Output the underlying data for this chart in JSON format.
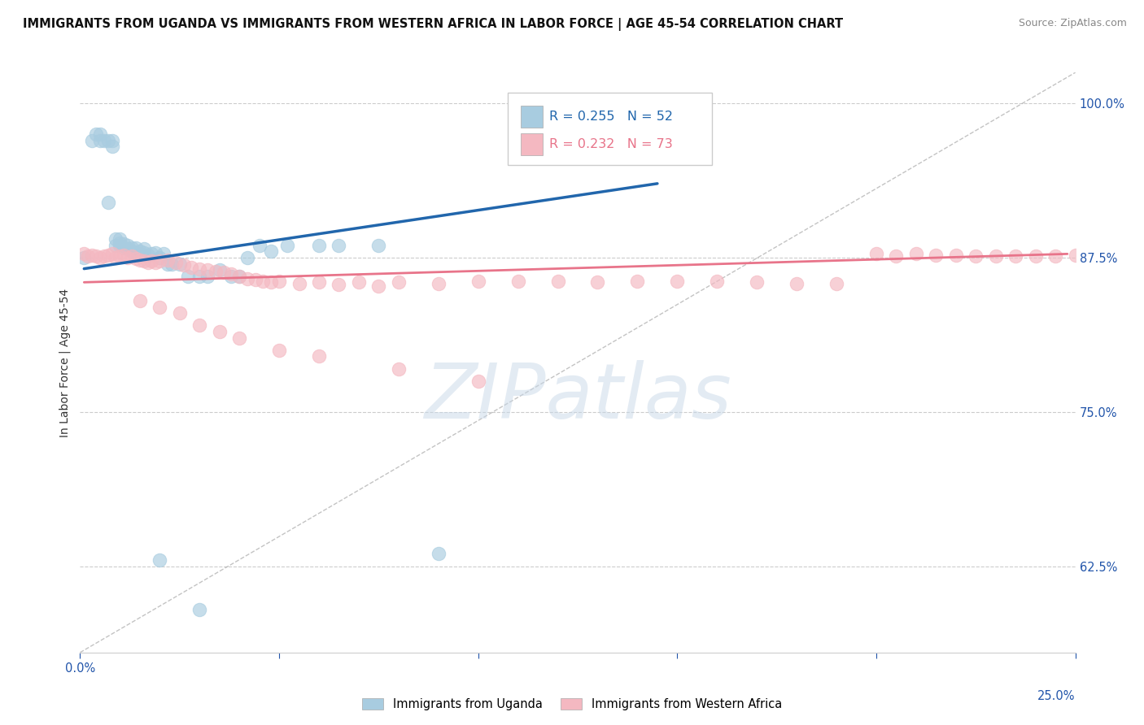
{
  "title": "IMMIGRANTS FROM UGANDA VS IMMIGRANTS FROM WESTERN AFRICA IN LABOR FORCE | AGE 45-54 CORRELATION CHART",
  "source": "Source: ZipAtlas.com",
  "ylabel": "In Labor Force | Age 45-54",
  "R_uganda": 0.255,
  "N_uganda": 52,
  "R_western": 0.232,
  "N_western": 73,
  "xlim": [
    0.0,
    0.25
  ],
  "ylim": [
    0.555,
    1.025
  ],
  "yticks": [
    0.625,
    0.75,
    0.875,
    1.0
  ],
  "ytick_labels": [
    "62.5%",
    "75.0%",
    "87.5%",
    "100.0%"
  ],
  "color_uganda": "#a8cce0",
  "color_western": "#f4b8c1",
  "trendline_color_uganda": "#2166ac",
  "trendline_color_western": "#e8748a",
  "legend_label_uganda": "Immigrants from Uganda",
  "legend_label_western": "Immigrants from Western Africa",
  "uganda_x": [
    0.001,
    0.003,
    0.004,
    0.005,
    0.005,
    0.006,
    0.007,
    0.007,
    0.008,
    0.008,
    0.009,
    0.009,
    0.01,
    0.01,
    0.01,
    0.011,
    0.011,
    0.012,
    0.012,
    0.013,
    0.013,
    0.013,
    0.014,
    0.014,
    0.015,
    0.015,
    0.016,
    0.016,
    0.017,
    0.018,
    0.019,
    0.02,
    0.021,
    0.022,
    0.023,
    0.025,
    0.027,
    0.03,
    0.032,
    0.035,
    0.038,
    0.04,
    0.042,
    0.045,
    0.048,
    0.052,
    0.06,
    0.065,
    0.075,
    0.09,
    0.02,
    0.03
  ],
  "uganda_y": [
    0.875,
    0.97,
    0.975,
    0.975,
    0.97,
    0.97,
    0.97,
    0.92,
    0.97,
    0.965,
    0.885,
    0.89,
    0.885,
    0.887,
    0.89,
    0.883,
    0.886,
    0.885,
    0.882,
    0.88,
    0.883,
    0.88,
    0.878,
    0.883,
    0.878,
    0.88,
    0.879,
    0.882,
    0.877,
    0.878,
    0.879,
    0.875,
    0.878,
    0.87,
    0.87,
    0.87,
    0.86,
    0.86,
    0.86,
    0.865,
    0.86,
    0.86,
    0.875,
    0.885,
    0.88,
    0.885,
    0.885,
    0.885,
    0.885,
    0.635,
    0.63,
    0.59
  ],
  "western_x": [
    0.001,
    0.002,
    0.003,
    0.004,
    0.005,
    0.006,
    0.007,
    0.008,
    0.009,
    0.01,
    0.011,
    0.012,
    0.013,
    0.014,
    0.015,
    0.016,
    0.017,
    0.018,
    0.019,
    0.02,
    0.022,
    0.024,
    0.026,
    0.028,
    0.03,
    0.032,
    0.034,
    0.036,
    0.038,
    0.04,
    0.042,
    0.044,
    0.046,
    0.048,
    0.05,
    0.055,
    0.06,
    0.065,
    0.07,
    0.075,
    0.08,
    0.09,
    0.1,
    0.11,
    0.12,
    0.13,
    0.14,
    0.15,
    0.16,
    0.17,
    0.18,
    0.19,
    0.2,
    0.205,
    0.21,
    0.215,
    0.22,
    0.225,
    0.23,
    0.235,
    0.24,
    0.245,
    0.25,
    0.015,
    0.02,
    0.025,
    0.03,
    0.035,
    0.04,
    0.05,
    0.06,
    0.08,
    0.1
  ],
  "western_y": [
    0.878,
    0.876,
    0.877,
    0.876,
    0.875,
    0.876,
    0.877,
    0.878,
    0.875,
    0.876,
    0.877,
    0.875,
    0.876,
    0.874,
    0.873,
    0.872,
    0.871,
    0.872,
    0.871,
    0.872,
    0.873,
    0.871,
    0.869,
    0.867,
    0.866,
    0.865,
    0.864,
    0.863,
    0.862,
    0.86,
    0.858,
    0.857,
    0.856,
    0.855,
    0.856,
    0.854,
    0.855,
    0.853,
    0.855,
    0.852,
    0.855,
    0.854,
    0.856,
    0.856,
    0.856,
    0.855,
    0.856,
    0.856,
    0.856,
    0.855,
    0.854,
    0.854,
    0.878,
    0.876,
    0.878,
    0.877,
    0.877,
    0.876,
    0.876,
    0.876,
    0.876,
    0.876,
    0.877,
    0.84,
    0.835,
    0.83,
    0.82,
    0.815,
    0.81,
    0.8,
    0.795,
    0.785,
    0.775
  ],
  "ref_line": [
    [
      0.0,
      0.25
    ],
    [
      0.555,
      1.025
    ]
  ],
  "watermark_text": "ZIPatlas",
  "watermark_color": "#c8d8e8",
  "watermark_alpha": 0.5
}
